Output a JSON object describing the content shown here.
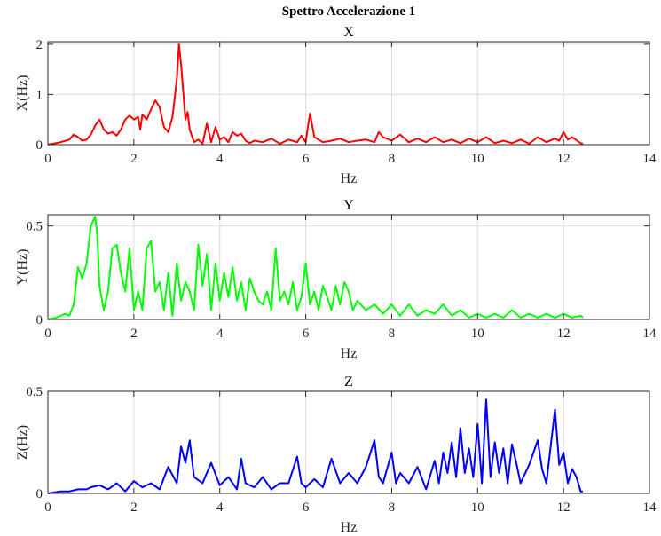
{
  "figure_title": "Spettro Accelerazione 1",
  "chart_data": [
    {
      "type": "line",
      "title": "X",
      "xlabel": "Hz",
      "ylabel": "X(Hz)",
      "xlim": [
        0,
        14
      ],
      "ylim": [
        0,
        2.05
      ],
      "xticks": [
        0,
        2,
        4,
        6,
        8,
        10,
        12,
        14
      ],
      "yticks": [
        0,
        1,
        2
      ],
      "grid": true,
      "color": "#ff0000",
      "series": [
        {
          "x": [
            0,
            0.3,
            0.5,
            0.6,
            0.7,
            0.8,
            0.9,
            1.0,
            1.1,
            1.2,
            1.3,
            1.4,
            1.5,
            1.6,
            1.7,
            1.8,
            1.9,
            2.0,
            2.1,
            2.15,
            2.2,
            2.3,
            2.4,
            2.5,
            2.6,
            2.7,
            2.8,
            2.9,
            3.0,
            3.05,
            3.1,
            3.2,
            3.25,
            3.3,
            3.4,
            3.5,
            3.6,
            3.7,
            3.8,
            3.9,
            4.0,
            4.1,
            4.2,
            4.3,
            4.4,
            4.5,
            4.6,
            4.7,
            4.8,
            5.0,
            5.2,
            5.4,
            5.6,
            5.8,
            5.9,
            6.0,
            6.05,
            6.1,
            6.2,
            6.4,
            6.6,
            6.8,
            7.0,
            7.2,
            7.4,
            7.6,
            7.7,
            7.8,
            8.0,
            8.2,
            8.4,
            8.6,
            8.8,
            9.0,
            9.2,
            9.4,
            9.6,
            9.8,
            10.0,
            10.2,
            10.4,
            10.6,
            10.8,
            11.0,
            11.2,
            11.4,
            11.6,
            11.8,
            11.9,
            12.0,
            12.1,
            12.2,
            12.4,
            12.45
          ],
          "y": [
            0,
            0.05,
            0.1,
            0.2,
            0.15,
            0.08,
            0.1,
            0.2,
            0.38,
            0.5,
            0.3,
            0.22,
            0.25,
            0.18,
            0.3,
            0.5,
            0.58,
            0.5,
            0.55,
            0.3,
            0.6,
            0.5,
            0.7,
            0.88,
            0.75,
            0.35,
            0.25,
            0.55,
            1.3,
            2.0,
            1.6,
            0.5,
            0.65,
            0.3,
            0.05,
            0.1,
            0.02,
            0.42,
            0.05,
            0.35,
            0.1,
            0.15,
            0.05,
            0.25,
            0.18,
            0.22,
            0.08,
            0.03,
            0.08,
            0.05,
            0.12,
            0.02,
            0.1,
            0.05,
            0.18,
            0.05,
            0.35,
            0.62,
            0.15,
            0.05,
            0.08,
            0.12,
            0.05,
            0.08,
            0.1,
            0.05,
            0.25,
            0.15,
            0.08,
            0.2,
            0.05,
            0.12,
            0.05,
            0.15,
            0.05,
            0.1,
            0.03,
            0.12,
            0.05,
            0.15,
            0.03,
            0.08,
            0.03,
            0.1,
            0.02,
            0.15,
            0.05,
            0.12,
            0.08,
            0.25,
            0.1,
            0.15,
            0.03,
            0.02
          ]
        }
      ]
    },
    {
      "type": "line",
      "title": "Y",
      "xlabel": "Hz",
      "ylabel": "Y(Hz)",
      "xlim": [
        0,
        14
      ],
      "ylim": [
        0,
        0.56
      ],
      "xticks": [
        0,
        2,
        4,
        6,
        8,
        10,
        12,
        14
      ],
      "yticks": [
        0,
        0.5
      ],
      "grid": true,
      "color": "#00ff00",
      "series": [
        {
          "x": [
            0,
            0.2,
            0.4,
            0.5,
            0.6,
            0.7,
            0.8,
            0.9,
            1.0,
            1.1,
            1.15,
            1.2,
            1.3,
            1.4,
            1.5,
            1.6,
            1.7,
            1.8,
            1.9,
            2.0,
            2.1,
            2.2,
            2.3,
            2.4,
            2.5,
            2.6,
            2.7,
            2.8,
            2.9,
            3.0,
            3.1,
            3.2,
            3.3,
            3.4,
            3.5,
            3.6,
            3.7,
            3.8,
            3.9,
            4.0,
            4.1,
            4.2,
            4.3,
            4.4,
            4.5,
            4.6,
            4.7,
            4.8,
            4.9,
            5.0,
            5.1,
            5.2,
            5.3,
            5.4,
            5.5,
            5.6,
            5.7,
            5.8,
            5.9,
            6.0,
            6.1,
            6.2,
            6.3,
            6.4,
            6.5,
            6.6,
            6.7,
            6.8,
            6.9,
            7.0,
            7.1,
            7.2,
            7.4,
            7.6,
            7.8,
            8.0,
            8.2,
            8.4,
            8.6,
            8.8,
            9.0,
            9.2,
            9.4,
            9.6,
            9.8,
            10.0,
            10.2,
            10.4,
            10.6,
            10.8,
            11.0,
            11.2,
            11.4,
            11.6,
            11.8,
            12.0,
            12.2,
            12.4,
            12.45
          ],
          "y": [
            0,
            0.01,
            0.03,
            0.02,
            0.08,
            0.28,
            0.22,
            0.3,
            0.5,
            0.55,
            0.45,
            0.18,
            0.05,
            0.15,
            0.38,
            0.4,
            0.25,
            0.15,
            0.38,
            0.05,
            0.15,
            0.05,
            0.38,
            0.42,
            0.15,
            0.2,
            0.05,
            0.25,
            0.02,
            0.3,
            0.1,
            0.2,
            0.15,
            0.05,
            0.4,
            0.18,
            0.35,
            0.05,
            0.3,
            0.1,
            0.25,
            0.12,
            0.28,
            0.1,
            0.2,
            0.05,
            0.22,
            0.15,
            0.1,
            0.08,
            0.15,
            0.05,
            0.38,
            0.1,
            0.15,
            0.08,
            0.2,
            0.05,
            0.12,
            0.3,
            0.08,
            0.15,
            0.05,
            0.18,
            0.12,
            0.05,
            0.18,
            0.08,
            0.2,
            0.15,
            0.05,
            0.1,
            0.05,
            0.08,
            0.03,
            0.08,
            0.02,
            0.08,
            0.02,
            0.05,
            0.03,
            0.08,
            0.02,
            0.05,
            0.01,
            0.03,
            0.01,
            0.03,
            0.01,
            0.05,
            0.01,
            0.03,
            0.01,
            0.03,
            0.01,
            0.03,
            0.01,
            0.02,
            0.01
          ]
        }
      ]
    },
    {
      "type": "line",
      "title": "Z",
      "xlabel": "Hz",
      "ylabel": "Z(Hz)",
      "xlim": [
        0,
        14
      ],
      "ylim": [
        0,
        0.5
      ],
      "xticks": [
        0,
        2,
        4,
        6,
        8,
        10,
        12,
        14
      ],
      "yticks": [
        0,
        0.5
      ],
      "grid": true,
      "color": "#0000ff",
      "series": [
        {
          "x": [
            0,
            0.3,
            0.5,
            0.7,
            0.9,
            1.0,
            1.2,
            1.4,
            1.6,
            1.8,
            2.0,
            2.2,
            2.4,
            2.6,
            2.8,
            3.0,
            3.1,
            3.2,
            3.3,
            3.4,
            3.6,
            3.8,
            4.0,
            4.2,
            4.4,
            4.5,
            4.6,
            4.8,
            5.0,
            5.2,
            5.4,
            5.6,
            5.8,
            5.9,
            6.0,
            6.2,
            6.4,
            6.6,
            6.8,
            7.0,
            7.2,
            7.4,
            7.6,
            7.7,
            7.8,
            8.0,
            8.1,
            8.2,
            8.4,
            8.6,
            8.8,
            9.0,
            9.1,
            9.2,
            9.3,
            9.4,
            9.5,
            9.6,
            9.7,
            9.8,
            9.9,
            10.0,
            10.1,
            10.2,
            10.3,
            10.4,
            10.5,
            10.6,
            10.7,
            10.8,
            10.9,
            11.0,
            11.2,
            11.4,
            11.5,
            11.6,
            11.8,
            11.9,
            12.0,
            12.1,
            12.2,
            12.3,
            12.4,
            12.45
          ],
          "y": [
            0,
            0.01,
            0.01,
            0.02,
            0.02,
            0.03,
            0.04,
            0.02,
            0.05,
            0.01,
            0.06,
            0.03,
            0.05,
            0.02,
            0.13,
            0.05,
            0.23,
            0.15,
            0.26,
            0.08,
            0.05,
            0.15,
            0.04,
            0.08,
            0.02,
            0.17,
            0.05,
            0.03,
            0.08,
            0.02,
            0.05,
            0.05,
            0.18,
            0.05,
            0.03,
            0.07,
            0.03,
            0.17,
            0.05,
            0.1,
            0.05,
            0.13,
            0.26,
            0.08,
            0.05,
            0.2,
            0.05,
            0.1,
            0.05,
            0.13,
            0.02,
            0.16,
            0.05,
            0.2,
            0.1,
            0.25,
            0.08,
            0.32,
            0.1,
            0.22,
            0.08,
            0.34,
            0.05,
            0.46,
            0.08,
            0.25,
            0.1,
            0.22,
            0.05,
            0.24,
            0.15,
            0.05,
            0.14,
            0.26,
            0.12,
            0.05,
            0.41,
            0.14,
            0.2,
            0.05,
            0.12,
            0.08,
            0.01,
            0.01
          ]
        }
      ]
    }
  ]
}
